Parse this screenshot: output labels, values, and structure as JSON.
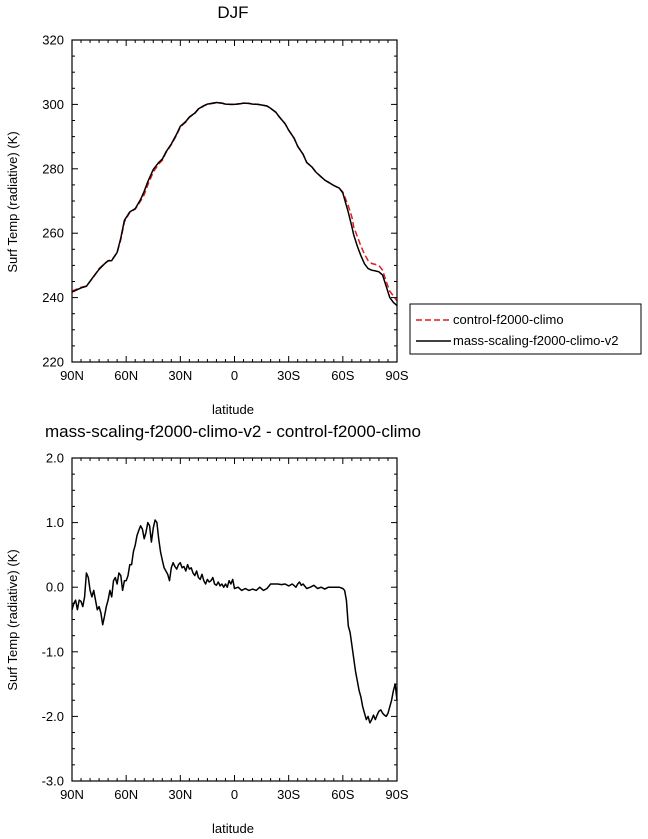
{
  "chart_data": [
    {
      "type": "line",
      "title": "DJF",
      "xlabel": "latitude",
      "ylabel": "Surf Temp (radiative) (K)",
      "xlim": [
        90,
        -90
      ],
      "ylim": [
        220,
        320
      ],
      "x_tick_values": [
        90,
        60,
        30,
        0,
        -30,
        -60,
        -90
      ],
      "x_tick_labels": [
        "90N",
        "60N",
        "30N",
        "0",
        "30S",
        "60S",
        "90S"
      ],
      "y_ticks": [
        "220",
        "240",
        "260",
        "280",
        "300",
        "320"
      ],
      "y_tick_values": [
        220,
        240,
        260,
        280,
        300,
        320
      ],
      "legend_position": "right",
      "series": [
        {
          "name": "control-f2000-climo",
          "color": "#e41a1c",
          "dash": "dashed",
          "x": [
            90,
            85,
            82,
            78,
            75,
            72,
            70,
            68,
            65,
            63,
            61,
            58,
            55,
            52,
            50,
            48,
            45,
            42,
            40,
            38,
            35,
            32,
            30,
            27,
            25,
            22,
            20,
            17,
            15,
            12,
            10,
            7,
            5,
            2,
            0,
            -3,
            -5,
            -8,
            -10,
            -13,
            -15,
            -18,
            -20,
            -23,
            -25,
            -28,
            -30,
            -33,
            -35,
            -38,
            -40,
            -43,
            -45,
            -48,
            -50,
            -53,
            -55,
            -58,
            -60,
            -63,
            -65,
            -66,
            -68,
            -70,
            -72,
            -74,
            -76,
            -78,
            -80,
            -82,
            -84,
            -86,
            -88,
            -90
          ],
          "y": [
            242.0,
            243.2,
            243.6,
            246.5,
            249.0,
            250.6,
            251.5,
            251.6,
            254.0,
            258.0,
            263.5,
            266.5,
            267.5,
            270.0,
            272.0,
            275.0,
            279.0,
            281.5,
            282.6,
            285.0,
            287.5,
            290.5,
            293.0,
            294.5,
            296.0,
            297.2,
            298.5,
            299.5,
            300.0,
            300.3,
            300.5,
            300.4,
            300.1,
            300.0,
            300.0,
            300.2,
            300.4,
            300.3,
            300.1,
            300.0,
            299.8,
            299.5,
            298.8,
            297.5,
            296.0,
            294.0,
            292.0,
            289.5,
            287.0,
            284.5,
            282.0,
            280.5,
            279.0,
            277.5,
            276.5,
            275.5,
            274.8,
            274.0,
            272.8,
            268.5,
            265.0,
            262.0,
            259.0,
            256.0,
            253.5,
            251.5,
            250.6,
            250.3,
            250.0,
            248.5,
            245.0,
            242.0,
            240.5,
            239.0
          ]
        },
        {
          "name": "mass-scaling-f2000-climo-v2",
          "color": "#000000",
          "dash": "solid",
          "x": [
            90,
            85,
            82,
            78,
            75,
            72,
            70,
            68,
            65,
            63,
            61,
            58,
            55,
            52,
            50,
            48,
            45,
            42,
            40,
            38,
            35,
            32,
            30,
            27,
            25,
            22,
            20,
            17,
            15,
            12,
            10,
            7,
            5,
            2,
            0,
            -3,
            -5,
            -8,
            -10,
            -13,
            -15,
            -18,
            -20,
            -23,
            -25,
            -28,
            -30,
            -33,
            -35,
            -38,
            -40,
            -43,
            -45,
            -48,
            -50,
            -53,
            -55,
            -58,
            -60,
            -63,
            -65,
            -66,
            -68,
            -70,
            -72,
            -74,
            -76,
            -78,
            -80,
            -82,
            -84,
            -86,
            -88,
            -90
          ],
          "y": [
            241.7,
            243.0,
            243.5,
            246.6,
            248.8,
            250.5,
            251.4,
            251.5,
            254.0,
            258.5,
            264.0,
            266.6,
            267.6,
            270.5,
            273.0,
            276.0,
            279.8,
            282.0,
            283.0,
            285.2,
            287.7,
            290.8,
            293.2,
            294.7,
            296.1,
            297.3,
            298.6,
            299.6,
            300.1,
            300.4,
            300.6,
            300.4,
            300.1,
            300.0,
            300.0,
            300.2,
            300.4,
            300.3,
            300.1,
            300.0,
            299.8,
            299.5,
            298.8,
            297.5,
            296.0,
            294.0,
            292.0,
            289.5,
            287.0,
            284.5,
            282.0,
            280.5,
            279.0,
            277.5,
            276.5,
            275.5,
            274.8,
            274.0,
            272.5,
            266.5,
            262.0,
            259.5,
            256.0,
            253.0,
            250.5,
            249.0,
            248.5,
            248.3,
            248.0,
            247.0,
            243.5,
            240.0,
            238.5,
            237.5
          ]
        }
      ]
    },
    {
      "type": "line",
      "title": "mass-scaling-f2000-climo-v2 - control-f2000-climo",
      "xlabel": "latitude",
      "ylabel": "Surf Temp (radiative) (K)",
      "xlim": [
        90,
        -90
      ],
      "ylim": [
        -3.0,
        2.0
      ],
      "x_tick_values": [
        90,
        60,
        30,
        0,
        -30,
        -60,
        -90
      ],
      "x_tick_labels": [
        "90N",
        "60N",
        "30N",
        "0",
        "30S",
        "60S",
        "90S"
      ],
      "y_ticks": [
        "-3.0",
        "-2.0",
        "-1.0",
        "0.0",
        "1.0",
        "2.0"
      ],
      "y_tick_values": [
        -3.0,
        -2.0,
        -1.0,
        0.0,
        1.0,
        2.0
      ],
      "series": [
        {
          "name": "",
          "color": "#000000",
          "dash": "solid",
          "x": [
            90,
            89,
            88,
            87,
            86,
            85,
            84,
            83,
            82,
            81,
            80,
            79,
            78,
            77,
            76,
            75,
            74,
            73,
            72,
            71,
            70,
            69,
            68,
            67,
            66,
            65,
            64,
            63,
            62,
            61,
            60,
            59,
            58,
            57,
            56,
            55,
            54,
            53,
            52,
            51,
            50,
            49,
            48,
            47,
            46,
            45,
            44,
            43,
            42,
            41,
            40,
            39,
            38,
            37,
            36,
            35,
            34,
            33,
            32,
            31,
            30,
            29,
            28,
            27,
            26,
            25,
            24,
            23,
            22,
            21,
            20,
            19,
            18,
            17,
            16,
            15,
            14,
            13,
            12,
            11,
            10,
            9,
            8,
            7,
            6,
            5,
            4,
            3,
            2,
            1,
            0,
            -2,
            -4,
            -6,
            -8,
            -10,
            -12,
            -14,
            -16,
            -18,
            -20,
            -22,
            -24,
            -26,
            -28,
            -30,
            -32,
            -34,
            -35,
            -36,
            -37,
            -38,
            -40,
            -42,
            -44,
            -46,
            -48,
            -50,
            -52,
            -54,
            -56,
            -58,
            -60,
            -61,
            -62,
            -63,
            -64,
            -65,
            -66,
            -67,
            -68,
            -69,
            -70,
            -71,
            -72,
            -73,
            -74,
            -75,
            -76,
            -77,
            -78,
            -79,
            -80,
            -81,
            -82,
            -83,
            -84,
            -85,
            -86,
            -87,
            -88,
            -89,
            -90
          ],
          "y": [
            -0.35,
            -0.25,
            -0.2,
            -0.35,
            -0.2,
            -0.22,
            -0.3,
            -0.15,
            0.22,
            0.15,
            -0.05,
            -0.15,
            -0.05,
            -0.2,
            -0.35,
            -0.3,
            -0.4,
            -0.58,
            -0.45,
            -0.3,
            -0.2,
            -0.05,
            -0.15,
            0.1,
            0.15,
            0.05,
            0.22,
            0.18,
            -0.05,
            0.1,
            0.1,
            0.18,
            0.35,
            0.35,
            0.55,
            0.65,
            0.8,
            0.88,
            0.95,
            0.9,
            0.75,
            0.85,
            1.0,
            0.95,
            0.7,
            0.92,
            1.04,
            1.0,
            0.75,
            0.55,
            0.42,
            0.3,
            0.25,
            0.2,
            0.1,
            0.3,
            0.38,
            0.32,
            0.28,
            0.35,
            0.38,
            0.3,
            0.32,
            0.25,
            0.35,
            0.28,
            0.3,
            0.22,
            0.18,
            0.25,
            0.15,
            0.12,
            0.2,
            0.1,
            0.05,
            0.12,
            0.08,
            0.1,
            0.15,
            0.05,
            0.03,
            0.08,
            0.02,
            0.05,
            0.0,
            0.05,
            0.0,
            0.1,
            0.05,
            0.12,
            -0.02,
            0.0,
            -0.05,
            -0.02,
            -0.05,
            -0.03,
            -0.05,
            0.0,
            -0.05,
            -0.02,
            0.05,
            0.05,
            0.05,
            0.04,
            0.05,
            0.02,
            0.05,
            0.0,
            0.05,
            0.08,
            0.03,
            0.05,
            -0.02,
            0.0,
            0.03,
            -0.02,
            0.0,
            -0.03,
            0.0,
            0.0,
            0.0,
            0.0,
            -0.02,
            -0.05,
            -0.2,
            -0.6,
            -0.7,
            -0.9,
            -1.1,
            -1.3,
            -1.45,
            -1.6,
            -1.7,
            -1.85,
            -1.95,
            -2.05,
            -2.0,
            -2.1,
            -2.05,
            -1.98,
            -2.05,
            -1.98,
            -1.92,
            -1.9,
            -1.95,
            -1.98,
            -2.0,
            -1.95,
            -1.85,
            -1.75,
            -1.6,
            -1.5,
            -1.75
          ]
        }
      ]
    }
  ]
}
